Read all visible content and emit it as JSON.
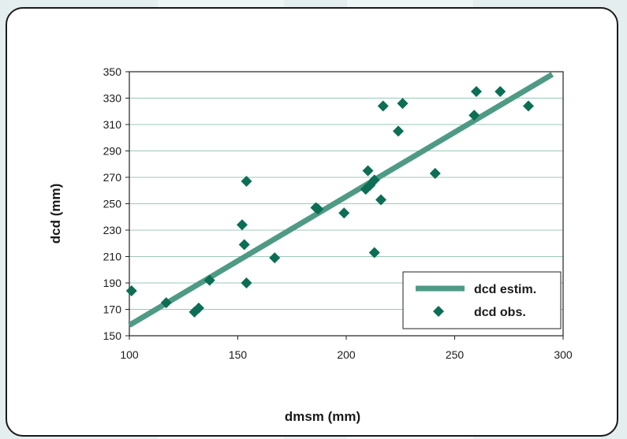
{
  "colors": {
    "page_background": "#e4eeee",
    "page_band": "#eef5f5",
    "line": "#4e9a85",
    "marker": "#0b6e55",
    "grid": "#9cc9b8"
  },
  "chart_data": {
    "type": "scatter",
    "xlabel": "dmsm (mm)",
    "ylabel": "dcd (mm)",
    "xlim": [
      100,
      300
    ],
    "ylim": [
      150,
      350
    ],
    "x_ticks": [
      100,
      150,
      200,
      250,
      300
    ],
    "y_ticks": [
      150,
      170,
      190,
      210,
      230,
      250,
      270,
      290,
      310,
      330,
      350
    ],
    "grid": "horizontal",
    "legend_position": "bottom-right",
    "series": [
      {
        "name": "dcd estim.",
        "kind": "line",
        "points": [
          [
            100,
            158
          ],
          [
            295,
            348
          ]
        ]
      },
      {
        "name": "dcd obs.",
        "kind": "scatter",
        "marker": "diamond",
        "points": [
          [
            101,
            184
          ],
          [
            117,
            175
          ],
          [
            130,
            168
          ],
          [
            132,
            171
          ],
          [
            137,
            192
          ],
          [
            152,
            234
          ],
          [
            153,
            219
          ],
          [
            154,
            267
          ],
          [
            154,
            190
          ],
          [
            167,
            209
          ],
          [
            186,
            247
          ],
          [
            187,
            246
          ],
          [
            199,
            243
          ],
          [
            209,
            261
          ],
          [
            210,
            275
          ],
          [
            211,
            264
          ],
          [
            213,
            268
          ],
          [
            213,
            213
          ],
          [
            216,
            253
          ],
          [
            217,
            324
          ],
          [
            224,
            305
          ],
          [
            226,
            326
          ],
          [
            241,
            273
          ],
          [
            259,
            317
          ],
          [
            260,
            335
          ],
          [
            271,
            335
          ],
          [
            284,
            324
          ]
        ]
      }
    ]
  }
}
